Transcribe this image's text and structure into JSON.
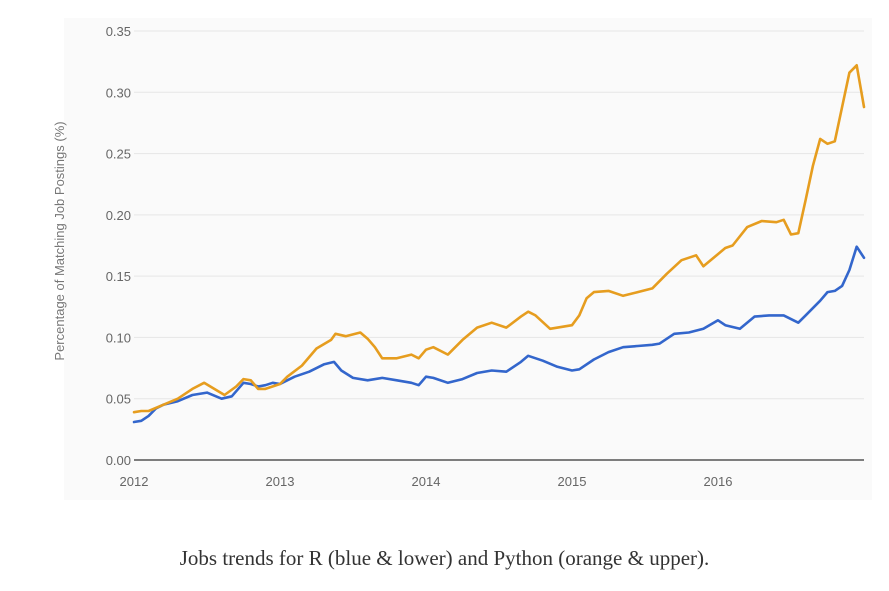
{
  "chart_data": {
    "type": "line",
    "title": "",
    "xlabel": "",
    "ylabel": "Percentage of Matching Job Postings (%)",
    "xlim": [
      2012,
      2017
    ],
    "ylim": [
      0,
      0.35
    ],
    "x_ticks": [
      "2012",
      "2013",
      "2014",
      "2015",
      "2016"
    ],
    "y_ticks": [
      "0.00",
      "0.05",
      "0.10",
      "0.15",
      "0.20",
      "0.25",
      "0.30",
      "0.35"
    ],
    "grid": true,
    "series": [
      {
        "name": "R",
        "color": "#3366cc",
        "x": [
          2012.0,
          2012.05,
          2012.1,
          2012.15,
          2012.2,
          2012.3,
          2012.4,
          2012.5,
          2012.6,
          2012.67,
          2012.75,
          2012.8,
          2012.85,
          2012.9,
          2012.95,
          2013.0,
          2013.05,
          2013.1,
          2013.2,
          2013.3,
          2013.37,
          2013.42,
          2013.5,
          2013.6,
          2013.7,
          2013.8,
          2013.9,
          2013.95,
          2014.0,
          2014.05,
          2014.15,
          2014.25,
          2014.35,
          2014.45,
          2014.55,
          2014.65,
          2014.7,
          2014.8,
          2014.9,
          2015.0,
          2015.05,
          2015.15,
          2015.25,
          2015.35,
          2015.45,
          2015.55,
          2015.6,
          2015.7,
          2015.8,
          2015.9,
          2016.0,
          2016.05,
          2016.15,
          2016.25,
          2016.35,
          2016.45,
          2016.55,
          2016.6,
          2016.7,
          2016.75,
          2016.8,
          2016.85,
          2016.9,
          2016.95,
          2017.0
        ],
        "values": [
          0.031,
          0.032,
          0.036,
          0.042,
          0.045,
          0.048,
          0.053,
          0.055,
          0.05,
          0.052,
          0.063,
          0.062,
          0.06,
          0.061,
          0.063,
          0.062,
          0.065,
          0.068,
          0.072,
          0.078,
          0.08,
          0.073,
          0.067,
          0.065,
          0.067,
          0.065,
          0.063,
          0.061,
          0.068,
          0.067,
          0.063,
          0.066,
          0.071,
          0.073,
          0.072,
          0.08,
          0.085,
          0.081,
          0.076,
          0.073,
          0.074,
          0.082,
          0.088,
          0.092,
          0.093,
          0.094,
          0.095,
          0.103,
          0.104,
          0.107,
          0.114,
          0.11,
          0.107,
          0.117,
          0.118,
          0.118,
          0.112,
          0.118,
          0.13,
          0.137,
          0.138,
          0.142,
          0.155,
          0.174,
          0.165
        ]
      },
      {
        "name": "Python",
        "color": "#e69d1f",
        "x": [
          2012.0,
          2012.05,
          2012.1,
          2012.2,
          2012.3,
          2012.4,
          2012.48,
          2012.55,
          2012.62,
          2012.7,
          2012.75,
          2012.8,
          2012.85,
          2012.9,
          2013.0,
          2013.05,
          2013.15,
          2013.25,
          2013.35,
          2013.38,
          2013.45,
          2013.55,
          2013.6,
          2013.65,
          2013.7,
          2013.8,
          2013.9,
          2013.95,
          2014.0,
          2014.05,
          2014.15,
          2014.25,
          2014.35,
          2014.45,
          2014.55,
          2014.65,
          2014.7,
          2014.75,
          2014.85,
          2015.0,
          2015.05,
          2015.1,
          2015.15,
          2015.25,
          2015.35,
          2015.45,
          2015.55,
          2015.65,
          2015.75,
          2015.85,
          2015.9,
          2016.0,
          2016.05,
          2016.1,
          2016.2,
          2016.3,
          2016.4,
          2016.45,
          2016.5,
          2016.55,
          2016.6,
          2016.65,
          2016.7,
          2016.75,
          2016.8,
          2016.85,
          2016.9,
          2016.95,
          2017.0
        ],
        "values": [
          0.039,
          0.04,
          0.04,
          0.045,
          0.05,
          0.058,
          0.063,
          0.058,
          0.053,
          0.06,
          0.066,
          0.065,
          0.058,
          0.058,
          0.062,
          0.068,
          0.077,
          0.091,
          0.098,
          0.103,
          0.101,
          0.104,
          0.099,
          0.092,
          0.083,
          0.083,
          0.086,
          0.083,
          0.09,
          0.092,
          0.086,
          0.098,
          0.108,
          0.112,
          0.108,
          0.117,
          0.121,
          0.118,
          0.107,
          0.11,
          0.118,
          0.132,
          0.137,
          0.138,
          0.134,
          0.137,
          0.14,
          0.152,
          0.163,
          0.167,
          0.158,
          0.168,
          0.173,
          0.175,
          0.19,
          0.195,
          0.194,
          0.196,
          0.184,
          0.185,
          0.212,
          0.24,
          0.262,
          0.258,
          0.26,
          0.288,
          0.316,
          0.322,
          0.288
        ]
      }
    ]
  },
  "caption": "Jobs trends for R (blue & lower) and Python (orange & upper)."
}
